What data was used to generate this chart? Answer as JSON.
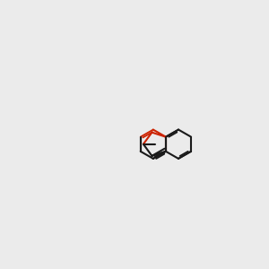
{
  "bg": "#ebebeb",
  "bond_color": "#1a1a1a",
  "red_color": "#cc2200",
  "blue_color": "#2222cc",
  "grey_color": "#888888",
  "lw": 1.5,
  "dlw": 1.3
}
